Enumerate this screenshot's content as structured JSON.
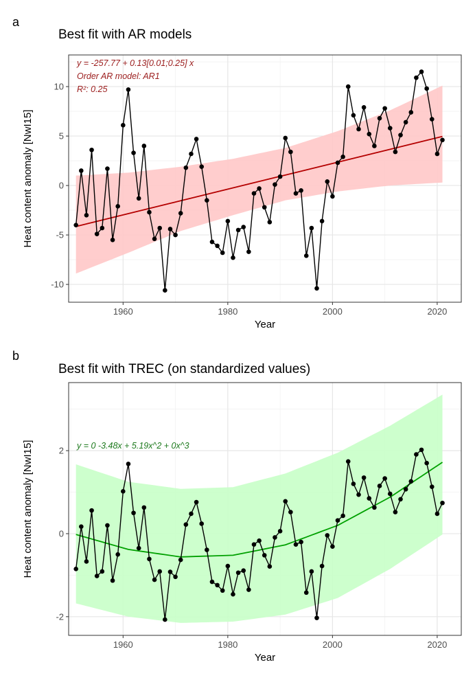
{
  "chart_data": [
    {
      "panel_label": "a",
      "type": "line",
      "title": "Best fit with AR models",
      "xlabel": "Year",
      "ylabel": "Heat content anomaly [NwI15]",
      "xlim": [
        1949.6,
        2024.6
      ],
      "ylim": [
        -11.8,
        13.2
      ],
      "xticks": [
        1960,
        1980,
        2000,
        2020
      ],
      "yticks": [
        -10,
        -5,
        0,
        5,
        10
      ],
      "grid": true,
      "colors": {
        "points": "#000000",
        "fit": "#b40000",
        "ribbon": "#ffc8c8",
        "annotation": "#9b1c1c"
      },
      "annotations": [
        "y = -257.77 + 0.13[0.01;0.25] x",
        "Order AR model: AR1",
        "R²: 0.25"
      ],
      "x": [
        1951,
        1952,
        1953,
        1954,
        1955,
        1956,
        1957,
        1958,
        1959,
        1960,
        1961,
        1962,
        1963,
        1964,
        1965,
        1966,
        1967,
        1968,
        1969,
        1970,
        1971,
        1972,
        1973,
        1974,
        1975,
        1976,
        1977,
        1978,
        1979,
        1980,
        1981,
        1982,
        1983,
        1984,
        1985,
        1986,
        1987,
        1988,
        1989,
        1990,
        1991,
        1992,
        1993,
        1994,
        1995,
        1996,
        1997,
        1998,
        1999,
        2000,
        2001,
        2002,
        2003,
        2004,
        2005,
        2006,
        2007,
        2008,
        2009,
        2010,
        2011,
        2012,
        2013,
        2014,
        2015,
        2016,
        2017,
        2018,
        2019,
        2020,
        2021
      ],
      "values": [
        -4,
        1.5,
        -3,
        3.6,
        -4.9,
        -4.3,
        1.7,
        -5.5,
        -2.1,
        6.1,
        9.7,
        3.3,
        -1.3,
        4.0,
        -2.7,
        -5.4,
        -4.3,
        -10.6,
        -4.4,
        -5.0,
        -2.8,
        1.8,
        3.2,
        4.7,
        1.9,
        -1.5,
        -5.7,
        -6.1,
        -6.8,
        -3.6,
        -7.3,
        -4.5,
        -4.2,
        -6.7,
        -0.8,
        -0.3,
        -2.2,
        -3.7,
        0.1,
        0.9,
        4.8,
        3.4,
        -0.8,
        -0.5,
        -7.1,
        -4.3,
        -10.4,
        -3.6,
        0.4,
        -1.1,
        2.3,
        2.9,
        10.0,
        7.1,
        5.7,
        7.9,
        5.2,
        4.0,
        6.8,
        7.8,
        5.8,
        3.4,
        5.1,
        6.4,
        7.4,
        10.9,
        11.5,
        9.8,
        6.7,
        3.2,
        4.6
      ],
      "fit": {
        "x": [
          1951,
          1961,
          1971,
          1981,
          1991,
          2001,
          2011,
          2021
        ],
        "y": [
          -4.14,
          -2.84,
          -1.54,
          -0.24,
          1.06,
          2.36,
          3.66,
          4.96
        ],
        "upper": [
          1.0,
          1.3,
          1.9,
          2.7,
          3.8,
          5.5,
          7.6,
          10.1
        ],
        "lower": [
          -8.9,
          -6.8,
          -4.6,
          -3.0,
          -1.5,
          -0.6,
          0.0,
          0.3
        ]
      }
    },
    {
      "panel_label": "b",
      "type": "line",
      "title": "Best fit with TREC (on standardized values)",
      "xlabel": "Year",
      "ylabel": "Heat content anomaly [NwI15]",
      "xlim": [
        1949.6,
        2024.6
      ],
      "ylim": [
        -2.45,
        3.64
      ],
      "xticks": [
        1960,
        1980,
        2000,
        2020
      ],
      "yticks": [
        -2,
        0,
        2
      ],
      "grid": true,
      "colors": {
        "points": "#000000",
        "fit": "#00a000",
        "ribbon": "#c8ffc8",
        "annotation": "#1e7a1e"
      },
      "annotations": [
        "y =  0   -3.48x  + 5.19x^2  + 0x^3"
      ],
      "x": [
        1951,
        1952,
        1953,
        1954,
        1955,
        1956,
        1957,
        1958,
        1959,
        1960,
        1961,
        1962,
        1963,
        1964,
        1965,
        1966,
        1967,
        1968,
        1969,
        1970,
        1971,
        1972,
        1973,
        1974,
        1975,
        1976,
        1977,
        1978,
        1979,
        1980,
        1981,
        1982,
        1983,
        1984,
        1985,
        1986,
        1987,
        1988,
        1989,
        1990,
        1991,
        1992,
        1993,
        1994,
        1995,
        1996,
        1997,
        1998,
        1999,
        2000,
        2001,
        2002,
        2003,
        2004,
        2005,
        2006,
        2007,
        2008,
        2009,
        2010,
        2011,
        2012,
        2013,
        2014,
        2015,
        2016,
        2017,
        2018,
        2019,
        2020,
        2021
      ],
      "values": [
        -0.85,
        0.17,
        -0.67,
        0.56,
        -1.02,
        -0.91,
        0.2,
        -1.13,
        -0.5,
        1.02,
        1.68,
        0.5,
        -0.35,
        0.63,
        -0.61,
        -1.11,
        -0.91,
        -2.07,
        -0.92,
        -1.04,
        -0.63,
        0.22,
        0.48,
        0.76,
        0.24,
        -0.39,
        -1.16,
        -1.24,
        -1.37,
        -0.78,
        -1.46,
        -0.94,
        -0.89,
        -1.35,
        -0.26,
        -0.17,
        -0.52,
        -0.79,
        -0.09,
        0.06,
        0.78,
        0.52,
        -0.26,
        -0.2,
        -1.42,
        -0.91,
        -2.03,
        -0.78,
        -0.04,
        -0.31,
        0.32,
        0.43,
        1.74,
        1.2,
        0.94,
        1.35,
        0.85,
        0.63,
        1.15,
        1.33,
        0.96,
        0.52,
        0.83,
        1.07,
        1.26,
        1.91,
        2.02,
        1.7,
        1.13,
        0.48,
        0.74
      ],
      "fit": {
        "x": [
          1951,
          1961,
          1971,
          1981,
          1991,
          2001,
          2011,
          2021
        ],
        "y": [
          -0.02,
          -0.38,
          -0.56,
          -0.52,
          -0.27,
          0.2,
          0.88,
          1.72
        ],
        "upper": [
          1.67,
          1.25,
          1.08,
          1.12,
          1.45,
          1.95,
          2.6,
          3.35
        ],
        "lower": [
          -1.68,
          -2.0,
          -2.15,
          -2.12,
          -1.95,
          -1.55,
          -0.85,
          -0.02
        ]
      }
    }
  ]
}
